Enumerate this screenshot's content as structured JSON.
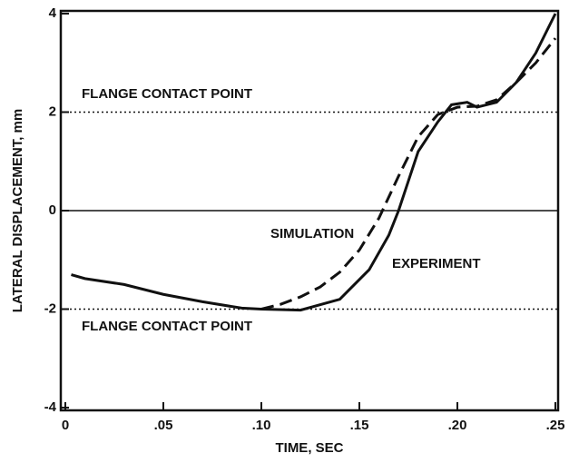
{
  "chart_data": {
    "type": "line",
    "x_label": "TIME, SEC",
    "y_label": "LATERAL DISPLACEMENT, mm",
    "xlim": [
      0,
      0.25
    ],
    "ylim": [
      -4,
      4
    ],
    "xticks": [
      0,
      {
        "value": 0.05,
        "label": ".05"
      },
      {
        "value": 0.1,
        "label": ".10"
      },
      {
        "value": 0.15,
        "label": ".15"
      },
      {
        "value": 0.2,
        "label": ".20"
      },
      {
        "value": 0.25,
        "label": ".25"
      }
    ],
    "yticks": [
      -4,
      -2,
      0,
      2,
      4
    ],
    "reference_lines": [
      {
        "value": 2,
        "style": "dotted"
      },
      {
        "value": 0,
        "style": "solid"
      },
      {
        "value": -2,
        "style": "dotted"
      }
    ],
    "annotations": [
      "FLANGE CONTACT POINT",
      "FLANGE CONTACT POINT",
      "SIMULATION",
      "EXPERIMENT"
    ],
    "series": [
      {
        "name": "EXPERIMENT",
        "style": "solid",
        "color": "#111111",
        "x": [
          0.003,
          0.01,
          0.03,
          0.05,
          0.07,
          0.09,
          0.1,
          0.12,
          0.14,
          0.155,
          0.165,
          0.17,
          0.175,
          0.18,
          0.19,
          0.197,
          0.205,
          0.21,
          0.22,
          0.23,
          0.24,
          0.25
        ],
        "values": [
          -1.3,
          -1.38,
          -1.5,
          -1.7,
          -1.85,
          -1.98,
          -2.0,
          -2.02,
          -1.8,
          -1.2,
          -0.5,
          0,
          0.6,
          1.2,
          1.8,
          2.15,
          2.2,
          2.1,
          2.2,
          2.6,
          3.2,
          4.0
        ]
      },
      {
        "name": "SIMULATION",
        "style": "dashed",
        "color": "#111111",
        "x": [
          0.1,
          0.11,
          0.12,
          0.13,
          0.14,
          0.15,
          0.16,
          0.17,
          0.18,
          0.19,
          0.2,
          0.21,
          0.22,
          0.23,
          0.24,
          0.25
        ],
        "values": [
          -2.0,
          -1.9,
          -1.75,
          -1.55,
          -1.25,
          -0.8,
          -0.15,
          0.7,
          1.5,
          1.95,
          2.1,
          2.12,
          2.25,
          2.6,
          3.0,
          3.5
        ]
      }
    ]
  }
}
